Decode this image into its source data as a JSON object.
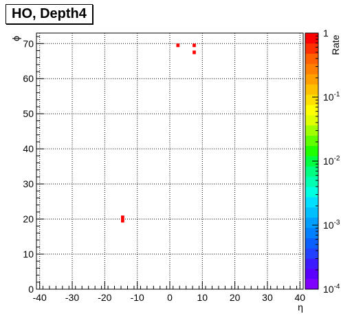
{
  "chart_data": {
    "type": "heatmap",
    "title": "HO, Depth4",
    "xlabel": "η",
    "ylabel": "ϕ",
    "zlabel": "Rate",
    "xlim": [
      -41,
      41
    ],
    "ylim": [
      0,
      73
    ],
    "x_ticks": [
      "-40",
      "-30",
      "-20",
      "-10",
      "0",
      "10",
      "20",
      "30",
      "40"
    ],
    "y_ticks": [
      "0",
      "10",
      "20",
      "30",
      "40",
      "50",
      "60",
      "70"
    ],
    "z_scale": "log",
    "zlim": [
      0.0001,
      1
    ],
    "z_ticks": [
      {
        "base": "10",
        "exp": "-4",
        "value": 0.0001
      },
      {
        "base": "10",
        "exp": "-3",
        "value": 0.001
      },
      {
        "base": "10",
        "exp": "-2",
        "value": 0.01
      },
      {
        "base": "10",
        "exp": "-1",
        "value": 0.1
      },
      {
        "base": "1",
        "exp": "",
        "value": 1
      }
    ],
    "grid": true,
    "cells": [
      {
        "eta": 2.5,
        "phi": 69.5,
        "value": 1
      },
      {
        "eta": 7.5,
        "phi": 69.5,
        "value": 1
      },
      {
        "eta": 7.5,
        "phi": 67.5,
        "value": 1
      },
      {
        "eta": -14.5,
        "phi": 20.5,
        "value": 1
      },
      {
        "eta": -14.5,
        "phi": 19.5,
        "value": 1
      }
    ],
    "palette": [
      "#7f00ff",
      "#5a00ff",
      "#3c1bff",
      "#2140ff",
      "#0a5fff",
      "#0080ff",
      "#009fff",
      "#00bfff",
      "#00dfff",
      "#00ffe0",
      "#00ffb0",
      "#00ff80",
      "#00ff40",
      "#20ff00",
      "#60ff00",
      "#a0ff00",
      "#dfff00",
      "#ffff00",
      "#ffe000",
      "#ffc000",
      "#ffa000",
      "#ff8000",
      "#ff6000",
      "#ff3000",
      "#ff0000"
    ]
  }
}
